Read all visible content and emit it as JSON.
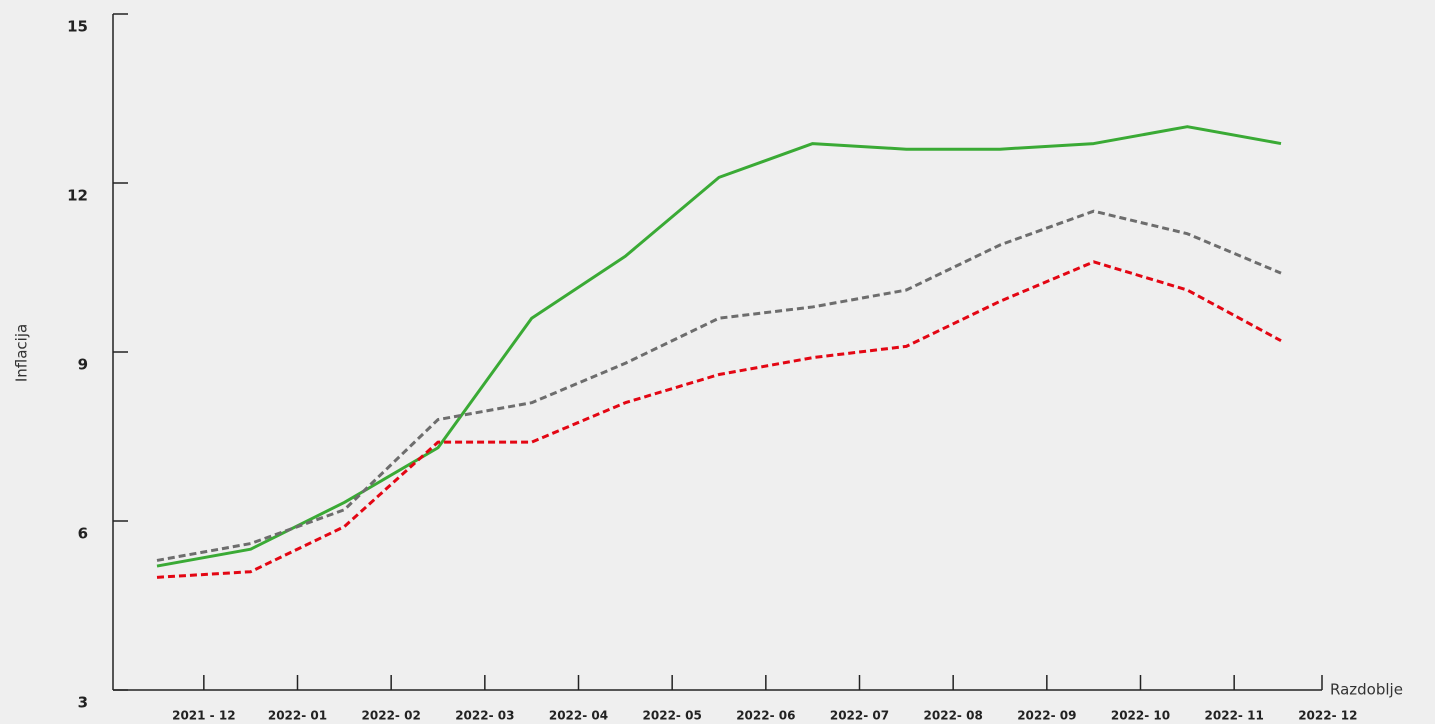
{
  "chart_data": {
    "type": "line",
    "ylabel": "Inflacija",
    "xlabel": "Razdoblje",
    "categories": [
      "2021 - 12",
      "2022- 01",
      "2022- 02",
      "2022- 03",
      "2022- 04",
      "2022- 05",
      "2022- 06",
      "2022- 07",
      "2022- 08",
      "2022- 09",
      "2022- 10",
      "2022- 11",
      "2022- 12"
    ],
    "series": [
      {
        "color": "#3aaa35",
        "dash": false,
        "values": [
          5.2,
          5.5,
          6.33,
          7.3,
          9.6,
          10.7,
          12.1,
          12.7,
          12.6,
          12.6,
          12.7,
          13.0,
          12.7
        ]
      },
      {
        "color": "#6d6d6d",
        "dash": true,
        "values": [
          5.3,
          5.6,
          6.2,
          7.8,
          8.1,
          8.8,
          9.6,
          9.8,
          10.1,
          10.9,
          11.5,
          11.1,
          10.4
        ]
      },
      {
        "color": "#e30613",
        "dash": true,
        "values": [
          5.0,
          5.1,
          5.9,
          7.4,
          7.4,
          8.1,
          8.6,
          8.9,
          9.1,
          9.9,
          10.6,
          10.1,
          9.2
        ]
      }
    ],
    "ylim": [
      3,
      15
    ],
    "yticks": [
      3,
      6,
      9,
      12,
      15
    ]
  }
}
